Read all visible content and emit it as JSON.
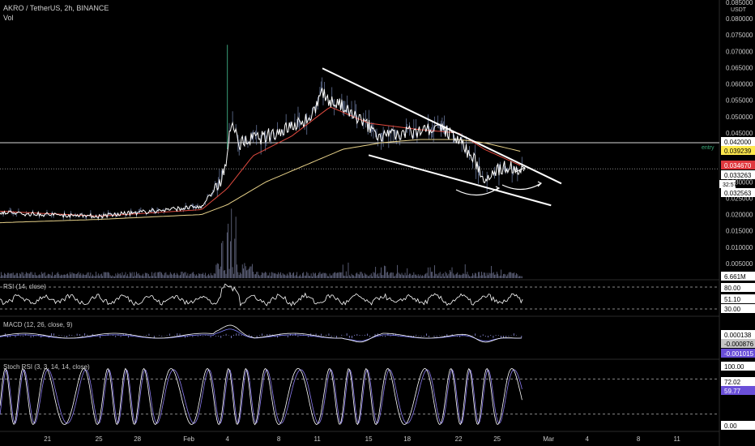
{
  "header": {
    "symbol_line": "AKRO / TetherUS, 2h, BINANCE",
    "volume_label": "Vol",
    "currency": "USDT"
  },
  "colors": {
    "background": "#000000",
    "price_line": "#ffffff",
    "ema_fast": "#e04a3f",
    "ema_slow": "#e8d28a",
    "volume": "#9aa0c8",
    "indicator_line": "#b7b4f0",
    "tag_red": "#e0383e",
    "tag_yellow": "#ffe94d",
    "tag_purple": "#6a4fd8",
    "tag_gray": "#c6c6c6",
    "entry_text": "#3aaa7a"
  },
  "labels": {
    "entry": "entry",
    "countdown": "32:57",
    "rsi_title": "RSI (14, close)",
    "macd_title": "MACD (12, 26, close, 9)",
    "stoch_title": "Stoch RSI (3, 3, 14, 14, close)"
  },
  "chart_data": [
    {
      "type": "line",
      "panel": "price",
      "y_ticks": [
        "0.085000",
        "0.080000",
        "0.075000",
        "0.070000",
        "0.065000",
        "0.060000",
        "0.055000",
        "0.050000",
        "0.045000",
        "0.040000",
        "0.035000",
        "0.030000",
        "0.025000",
        "0.020000",
        "0.015000",
        "0.010000",
        "0.005000"
      ],
      "ylim": [
        0.0,
        0.085
      ],
      "price_tags": [
        {
          "text": "0.042000",
          "style": "white"
        },
        {
          "text": "0.039239",
          "style": "yellow"
        },
        {
          "text": "0.034670",
          "style": "red"
        },
        {
          "text": "0.033263",
          "style": "white"
        },
        {
          "text": "0.032563",
          "style": "white"
        }
      ],
      "horizontal_levels": [
        0.042,
        0.034
      ],
      "volume_tag": "6.661M",
      "x_ticks": [
        "21",
        "25",
        "28",
        "Feb",
        "4",
        "8",
        "11",
        "15",
        "18",
        "22",
        "25",
        "Mar",
        "4",
        "8",
        "11"
      ],
      "x_tick_days": [
        21,
        25,
        28,
        32,
        35,
        39,
        42,
        46,
        49,
        53,
        56,
        60,
        63,
        67,
        70
      ],
      "x_axis_start": "Jan 19",
      "x_range_days": [
        17.3,
        73.3
      ],
      "close_keypoints": {
        "days": [
          17.3,
          25,
          33,
          34.5,
          35.0,
          35.3,
          36,
          38,
          40,
          41.5,
          42.3,
          43,
          44,
          45,
          46,
          47,
          49,
          51.5,
          53,
          54.5,
          55,
          55.5,
          57,
          57.8,
          58.0
        ],
        "values": [
          0.0205,
          0.0195,
          0.0225,
          0.03,
          0.039,
          0.048,
          0.042,
          0.044,
          0.047,
          0.05,
          0.057,
          0.055,
          0.053,
          0.05,
          0.047,
          0.044,
          0.045,
          0.047,
          0.043,
          0.035,
          0.031,
          0.033,
          0.035,
          0.032,
          0.0345
        ]
      },
      "ema_fast_keypoints": {
        "days": [
          17.3,
          25,
          33,
          35,
          37,
          40,
          43,
          46,
          50,
          53,
          55,
          58
        ],
        "values": [
          0.021,
          0.0195,
          0.0215,
          0.028,
          0.038,
          0.044,
          0.053,
          0.048,
          0.046,
          0.045,
          0.04,
          0.0347
        ]
      },
      "ema_slow_keypoints": {
        "days": [
          17.3,
          25,
          33,
          35,
          38,
          41,
          44,
          47,
          50,
          53,
          55,
          58
        ],
        "values": [
          0.0175,
          0.0185,
          0.02,
          0.023,
          0.03,
          0.035,
          0.04,
          0.042,
          0.043,
          0.043,
          0.042,
          0.0392
        ]
      },
      "wick_spikes": [
        {
          "day": 35.0,
          "value": 0.072
        }
      ],
      "volume_spike_days": [
        34.6,
        35.0,
        35.3,
        35.6
      ]
    },
    {
      "type": "line",
      "panel": "rsi",
      "tags": [
        {
          "text": "80.00",
          "style": "white"
        },
        {
          "text": "51.10",
          "style": "white"
        },
        {
          "text": "30.00",
          "style": "white"
        }
      ],
      "ylim": [
        20,
        90
      ],
      "values_start_end": [
        52,
        51.1
      ]
    },
    {
      "type": "line",
      "panel": "macd",
      "tags": [
        {
          "text": "0.000138",
          "style": "white"
        },
        {
          "text": "-0.000876",
          "style": "gray"
        },
        {
          "text": "-0.001015",
          "style": "purple"
        }
      ]
    },
    {
      "type": "line",
      "panel": "stoch_rsi",
      "tags": [
        {
          "text": "100.00",
          "style": "white"
        },
        {
          "text": "72.02",
          "style": "white"
        },
        {
          "text": "59.77",
          "style": "purple"
        },
        {
          "text": "0.00",
          "style": "white"
        }
      ],
      "ylim": [
        0,
        100
      ],
      "last_value": 59.77
    }
  ]
}
